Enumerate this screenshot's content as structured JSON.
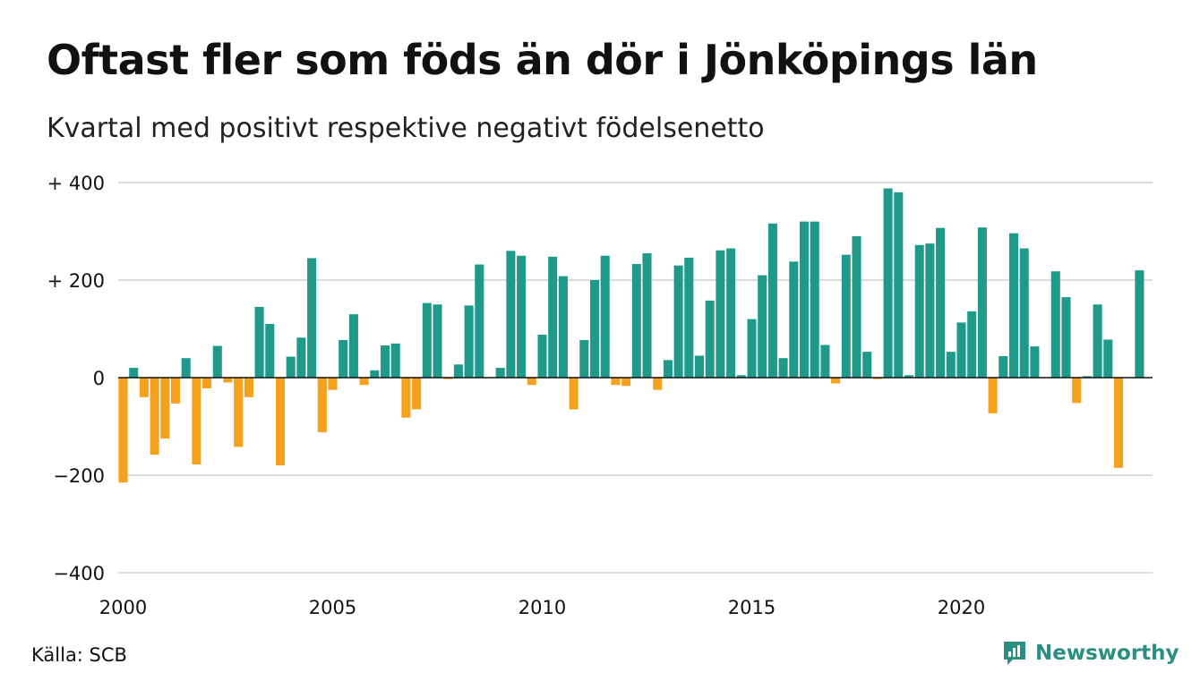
{
  "title": "Oftast fler som föds än dör i Jönköpings län",
  "subtitle": "Kvartal med positivt respektive negativt födelsenetto",
  "source": "Källa: SCB",
  "brand": "Newsworthy",
  "colors": {
    "positive": "#1f9a8a",
    "negative": "#f5a11c",
    "grid": "#dcdcdc",
    "zero": "#111111",
    "brand": "#2a8f82"
  },
  "chart_data": {
    "type": "bar",
    "ylim": [
      -400,
      400
    ],
    "yticks": [
      {
        "value": 400,
        "label": "+ 400"
      },
      {
        "value": 200,
        "label": "+ 200"
      },
      {
        "value": 0,
        "label": "0"
      },
      {
        "value": -200,
        "label": "−200"
      },
      {
        "value": -400,
        "label": "−400"
      }
    ],
    "xlim": [
      2000,
      2024.75
    ],
    "xticks": [
      {
        "value": 2000,
        "label": "2000"
      },
      {
        "value": 2005,
        "label": "2005"
      },
      {
        "value": 2010,
        "label": "2010"
      },
      {
        "value": 2015,
        "label": "2015"
      },
      {
        "value": 2020,
        "label": "2020"
      }
    ],
    "x_start": "2000 Q1",
    "frequency": "quarterly",
    "values": [
      -215,
      20,
      -40,
      -158,
      -125,
      -53,
      40,
      -178,
      -22,
      65,
      -10,
      -142,
      -40,
      145,
      110,
      -180,
      43,
      82,
      245,
      -112,
      -25,
      77,
      130,
      -15,
      15,
      66,
      70,
      -82,
      -65,
      153,
      150,
      -3,
      27,
      148,
      232,
      0,
      20,
      260,
      250,
      -15,
      88,
      248,
      208,
      -65,
      77,
      200,
      250,
      -15,
      -17,
      233,
      255,
      -25,
      36,
      230,
      246,
      45,
      158,
      261,
      265,
      5,
      120,
      210,
      316,
      40,
      238,
      320,
      320,
      67,
      -12,
      252,
      290,
      53,
      -3,
      388,
      380,
      5,
      272,
      275,
      307,
      53,
      113,
      136,
      308,
      -73,
      44,
      296,
      265,
      64,
      0,
      218,
      165,
      -52,
      3,
      150,
      78,
      -185,
      0,
      220
    ]
  }
}
